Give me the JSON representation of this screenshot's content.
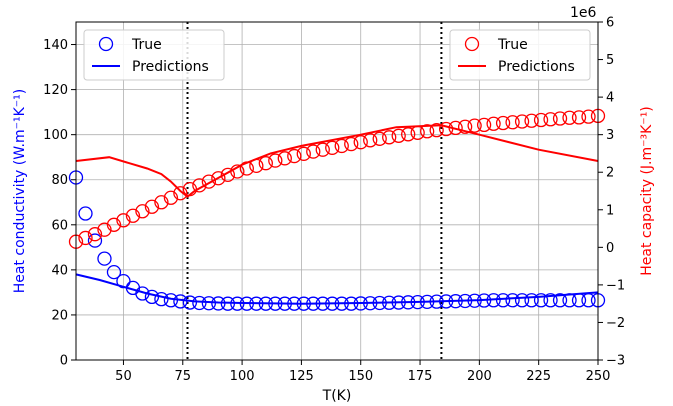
{
  "chart_data": {
    "type": "scatter",
    "xlabel": "T(K)",
    "xlim": [
      30,
      250
    ],
    "xticks": [
      50,
      75,
      100,
      125,
      150,
      175,
      200,
      225,
      250
    ],
    "left_axis": {
      "label": "Heat conductivity (W.m⁻¹K⁻¹)",
      "ylim": [
        0,
        150
      ],
      "ticks": [
        0,
        20,
        40,
        60,
        80,
        100,
        120,
        140
      ],
      "color": "#0000ff"
    },
    "right_axis": {
      "label": "Heat capacity (J.m⁻³K⁻¹)",
      "ylim": [
        -3,
        6
      ],
      "ticks": [
        -3,
        -2,
        -1,
        0,
        1,
        2,
        3,
        4,
        5,
        6
      ],
      "tick_labels": [
        "−3",
        "−2",
        "−1",
        "0",
        "1",
        "2",
        "3",
        "4",
        "5",
        "6"
      ],
      "offset_text": "1e6",
      "color": "#ff0000"
    },
    "vlines": [
      77,
      184
    ],
    "grid": true,
    "legends": [
      {
        "placement": "upper-left",
        "axis": "left",
        "entries": [
          "True",
          "Predictions"
        ],
        "color": "#0000ff"
      },
      {
        "placement": "upper-right",
        "axis": "right",
        "entries": [
          "True",
          "Predictions"
        ],
        "color": "#ff0000"
      }
    ],
    "series": [
      {
        "name": "True",
        "axis": "left",
        "kind": "markers",
        "color": "#0000ff",
        "x": [
          30,
          34,
          38,
          42,
          46,
          50,
          54,
          58,
          62,
          66,
          70,
          74,
          78,
          82,
          86,
          90,
          94,
          98,
          102,
          106,
          110,
          114,
          118,
          122,
          126,
          130,
          134,
          138,
          142,
          146,
          150,
          154,
          158,
          162,
          166,
          170,
          174,
          178,
          182,
          186,
          190,
          194,
          198,
          202,
          206,
          210,
          214,
          218,
          222,
          226,
          230,
          234,
          238,
          242,
          246,
          250
        ],
        "y": [
          81,
          65,
          53,
          45,
          39,
          35,
          32,
          29.5,
          28,
          27,
          26.5,
          26,
          25.5,
          25.3,
          25.2,
          25.1,
          25,
          25,
          25,
          25,
          25,
          25,
          25,
          25,
          25,
          25,
          25,
          25,
          25,
          25,
          25.1,
          25.2,
          25.3,
          25.4,
          25.5,
          25.6,
          25.7,
          25.8,
          25.9,
          26,
          26.1,
          26.2,
          26.3,
          26.4,
          26.5,
          26.5,
          26.5,
          26.5,
          26.5,
          26.5,
          26.5,
          26.5,
          26.5,
          26.5,
          26.5,
          26.5
        ]
      },
      {
        "name": "Predictions",
        "axis": "left",
        "kind": "line",
        "color": "#0000ff",
        "x": [
          30,
          40,
          50,
          60,
          70,
          80,
          90,
          100,
          125,
          150,
          175,
          200,
          225,
          250
        ],
        "y": [
          38,
          35.5,
          32.5,
          29.5,
          27.2,
          26,
          25.5,
          25.3,
          25,
          25.3,
          25.8,
          26.6,
          28,
          30
        ]
      },
      {
        "name": "True",
        "axis": "right",
        "kind": "markers",
        "color": "#ff0000",
        "x": [
          30,
          34,
          38,
          42,
          46,
          50,
          54,
          58,
          62,
          66,
          70,
          74,
          78,
          82,
          86,
          90,
          94,
          98,
          102,
          106,
          110,
          114,
          118,
          122,
          126,
          130,
          134,
          138,
          142,
          146,
          150,
          154,
          158,
          162,
          166,
          170,
          174,
          178,
          182,
          186,
          190,
          194,
          198,
          202,
          206,
          210,
          214,
          218,
          222,
          226,
          230,
          234,
          238,
          242,
          246,
          250
        ],
        "y": [
          0.15,
          0.25,
          0.35,
          0.47,
          0.6,
          0.72,
          0.84,
          0.96,
          1.08,
          1.2,
          1.32,
          1.44,
          1.55,
          1.65,
          1.75,
          1.84,
          1.93,
          2.02,
          2.1,
          2.17,
          2.24,
          2.31,
          2.37,
          2.43,
          2.49,
          2.55,
          2.6,
          2.65,
          2.7,
          2.75,
          2.8,
          2.85,
          2.89,
          2.93,
          2.97,
          3.01,
          3.05,
          3.09,
          3.12,
          3.15,
          3.18,
          3.21,
          3.24,
          3.26,
          3.29,
          3.31,
          3.33,
          3.35,
          3.37,
          3.39,
          3.41,
          3.43,
          3.45,
          3.46,
          3.48,
          3.5
        ]
      },
      {
        "name": "Predictions",
        "axis": "right",
        "kind": "line",
        "color": "#ff0000",
        "x": [
          30,
          44,
          60,
          66,
          70,
          74,
          77,
          80,
          90,
          100,
          112,
          125,
          150,
          165,
          184,
          200,
          225,
          250
        ],
        "y": [
          2.3,
          2.4,
          2.1,
          1.95,
          1.75,
          1.5,
          1.35,
          1.5,
          1.85,
          2.2,
          2.5,
          2.7,
          3.0,
          3.2,
          3.25,
          3.0,
          2.6,
          2.3
        ]
      }
    ]
  }
}
